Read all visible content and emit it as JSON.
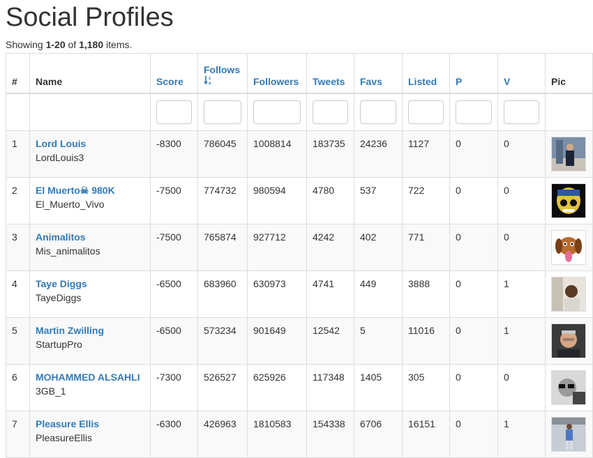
{
  "page": {
    "title": "Social Profiles",
    "summary": {
      "prefix": "Showing ",
      "range": "1-20",
      "of": " of ",
      "total": "1,180",
      "suffix": " items."
    }
  },
  "table": {
    "headers": {
      "num": "#",
      "name": "Name",
      "score": "Score",
      "follows": "Follows",
      "followers": "Followers",
      "tweets": "Tweets",
      "favs": "Favs",
      "listed": "Listed",
      "p": "P",
      "v": "V",
      "pic": "Pic"
    },
    "sorted_column": "follows",
    "sort_icon": "sort-amount-desc-icon",
    "rows": [
      {
        "num": "1",
        "name": "Lord Louis",
        "handle": "LordLouis3",
        "score": "-8300",
        "follows": "786045",
        "followers": "1008814",
        "tweets": "183735",
        "favs": "24236",
        "listed": "1127",
        "p": "0",
        "v": "0",
        "pic": "profile-photo-man-suit"
      },
      {
        "num": "2",
        "name": "El Muerto☠ 980K",
        "handle": "El_Muerto_Vivo",
        "score": "-7500",
        "follows": "774732",
        "followers": "980594",
        "tweets": "4780",
        "favs": "537",
        "listed": "722",
        "p": "0",
        "v": "0",
        "pic": "profile-photo-skull"
      },
      {
        "num": "3",
        "name": "Animalitos",
        "handle": "Mis_animalitos",
        "score": "-7500",
        "follows": "765874",
        "followers": "927712",
        "tweets": "4242",
        "favs": "402",
        "listed": "771",
        "p": "0",
        "v": "0",
        "pic": "profile-photo-cartoon-dog"
      },
      {
        "num": "4",
        "name": "Taye Diggs",
        "handle": "TayeDiggs",
        "score": "-6500",
        "follows": "683960",
        "followers": "630973",
        "tweets": "4741",
        "favs": "449",
        "listed": "3888",
        "p": "0",
        "v": "1",
        "pic": "profile-photo-man"
      },
      {
        "num": "5",
        "name": "Martin Zwilling",
        "handle": "StartupPro",
        "score": "-6500",
        "follows": "573234",
        "followers": "901649",
        "tweets": "12542",
        "favs": "5",
        "listed": "11016",
        "p": "0",
        "v": "1",
        "pic": "profile-photo-older-man"
      },
      {
        "num": "6",
        "name": "MOHAMMED ALSAHLI",
        "handle": "3GB_1",
        "score": "-7300",
        "follows": "526527",
        "followers": "625926",
        "tweets": "117348",
        "favs": "1405",
        "listed": "305",
        "p": "0",
        "v": "0",
        "pic": "profile-photo-bw-sunglasses"
      },
      {
        "num": "7",
        "name": "Pleasure Ellis",
        "handle": "PleasureEllis",
        "score": "-6300",
        "follows": "426963",
        "followers": "1810583",
        "tweets": "154338",
        "favs": "6706",
        "listed": "16151",
        "p": "0",
        "v": "1",
        "pic": "profile-photo-man-standing"
      }
    ]
  },
  "colors": {
    "link": "#337ab7",
    "text": "#333333",
    "border": "#dddddd",
    "stripe": "#f9f9f9"
  }
}
